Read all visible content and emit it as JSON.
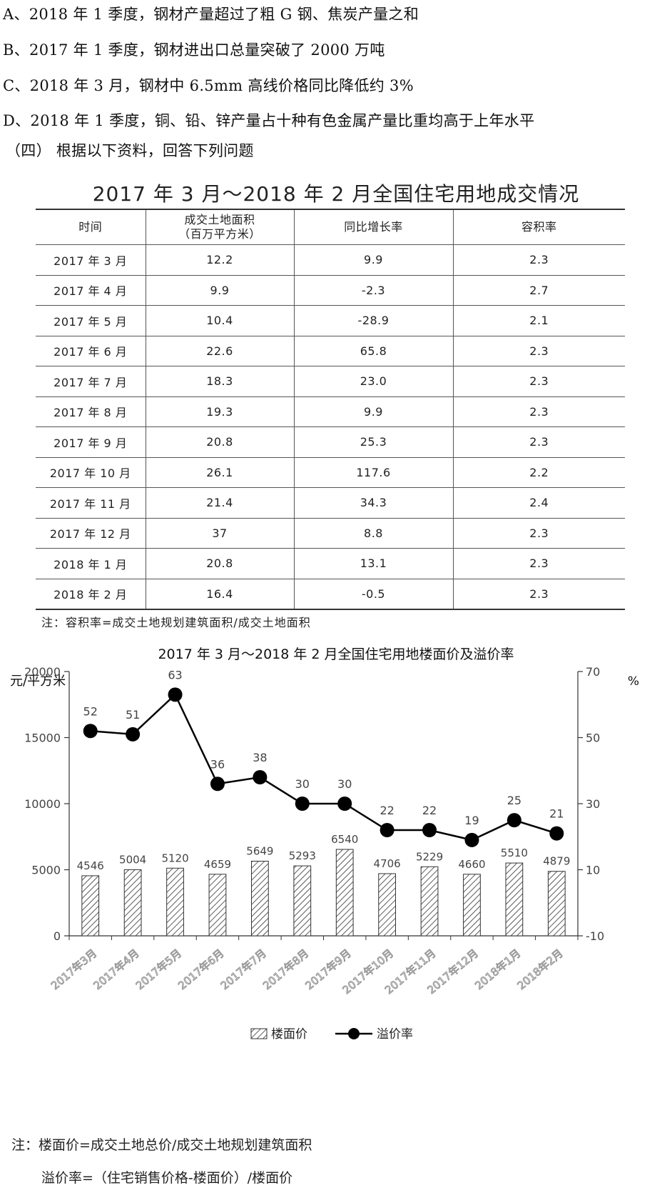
{
  "questions": [
    "A、2018 年 1 季度，钢材产量超过了粗 G 钢、焦炭产量之和",
    "B、2017 年 1 季度，钢材进出口总量突破了 2000 万吨",
    "C、2018 年 3 月，钢材中 6.5mm 高线价格同比降低约 3%",
    "D、2018 年 1 季度，铜、铅、锌产量占十种有色金属产量比重均高于上年水平",
    "（四）  根据以下资料，回答下列问题"
  ],
  "table": {
    "title": "2017 年 3 月～2018 年 2 月全国住宅用地成交情况",
    "headers": {
      "time": "时间",
      "area_line1": "成交土地面积",
      "area_line2": "（百万平方米）",
      "growth": "同比增长率",
      "far": "容积率"
    },
    "rows": [
      [
        "2017 年 3 月",
        "12.2",
        "9.9",
        "2.3"
      ],
      [
        "2017 年 4 月",
        "9.9",
        "-2.3",
        "2.7"
      ],
      [
        "2017 年 5 月",
        "10.4",
        "-28.9",
        "2.1"
      ],
      [
        "2017 年 6 月",
        "22.6",
        "65.8",
        "2.3"
      ],
      [
        "2017 年 7 月",
        "18.3",
        "23.0",
        "2.3"
      ],
      [
        "2017 年 8 月",
        "19.3",
        "9.9",
        "2.3"
      ],
      [
        "2017 年 9 月",
        "20.8",
        "25.3",
        "2.3"
      ],
      [
        "2017 年 10 月",
        "26.1",
        "117.6",
        "2.2"
      ],
      [
        "2017 年 11 月",
        "21.4",
        "34.3",
        "2.4"
      ],
      [
        "2017 年 12 月",
        "37",
        "8.8",
        "2.3"
      ],
      [
        "2018 年 1 月",
        "20.8",
        "13.1",
        "2.3"
      ],
      [
        "2018 年 2 月",
        "16.4",
        "-0.5",
        "2.3"
      ]
    ],
    "note": "注：容积率=成交土地规划建筑面积/成交土地面积"
  },
  "chart_data": {
    "type": "bar+line",
    "title": "2017 年 3 月～2018 年 2 月全国住宅用地楼面价及溢价率",
    "left_unit": "元/平方米",
    "right_unit": "%",
    "categories": [
      "2017年3月",
      "2017年4月",
      "2017年5月",
      "2017年6月",
      "2017年7月",
      "2017年8月",
      "2017年9月",
      "2017年10月",
      "2017年11月",
      "2017年12月",
      "2018年1月",
      "2018年2月"
    ],
    "series": [
      {
        "name": "楼面价",
        "type": "bar",
        "axis": "left",
        "values": [
          4546,
          5004,
          5120,
          4659,
          5649,
          5293,
          6540,
          4706,
          5229,
          4660,
          5510,
          4879
        ]
      },
      {
        "name": "溢价率",
        "type": "line",
        "axis": "right",
        "values": [
          52,
          51,
          63,
          36,
          38,
          30,
          30,
          22,
          22,
          19,
          25,
          21
        ]
      }
    ],
    "left_ticks": [
      0,
      5000,
      10000,
      15000,
      20000
    ],
    "right_ticks": [
      -10,
      10,
      30,
      50,
      70
    ],
    "left_range": [
      0,
      20000
    ],
    "right_range": [
      -10,
      70
    ],
    "legend_position": "bottom-center",
    "bar_fill": "diagonal-hatch",
    "line_color": "#000000"
  },
  "chart_notes": [
    "注：楼面价=成交土地总价/成交土地规划建筑面积",
    "溢价率=（住宅销售价格-楼面价）/楼面价"
  ]
}
